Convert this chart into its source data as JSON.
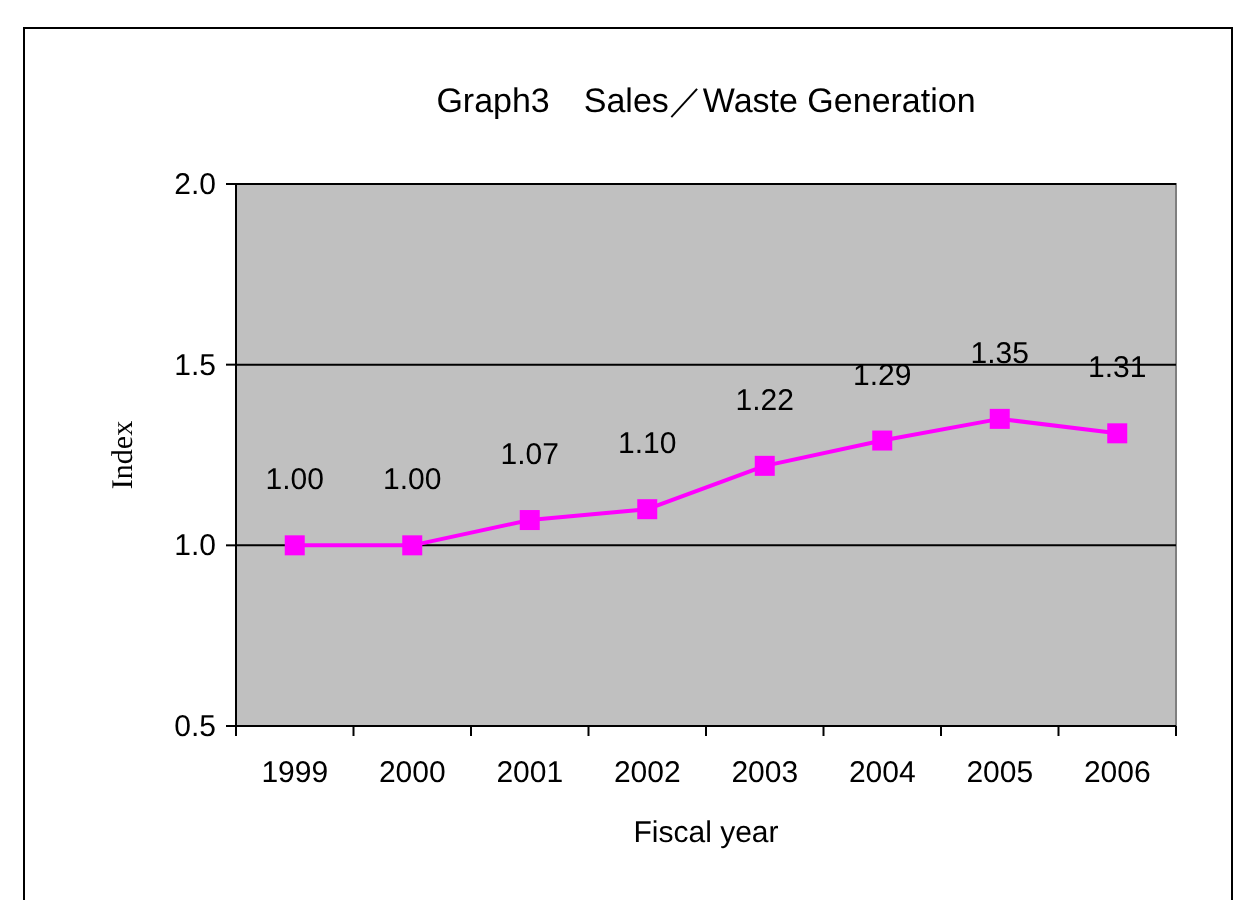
{
  "chart_data": {
    "type": "line",
    "title": "Graph3　Sales／Waste Generation",
    "xlabel": "Fiscal year",
    "ylabel": "Index",
    "categories": [
      "1999",
      "2000",
      "2001",
      "2002",
      "2003",
      "2004",
      "2005",
      "2006"
    ],
    "series": [
      {
        "color": "#ff00ff",
        "values": [
          1.0,
          1.0,
          1.07,
          1.1,
          1.22,
          1.29,
          1.35,
          1.31
        ],
        "value_labels": [
          "1.00",
          "1.00",
          "1.07",
          "1.10",
          "1.22",
          "1.29",
          "1.35",
          "1.31"
        ]
      }
    ],
    "ylim": [
      0.5,
      2.0
    ],
    "yticks": [
      {
        "value": 0.5,
        "label": "0.5"
      },
      {
        "value": 1,
        "label": "1.0"
      },
      {
        "value": 1.5,
        "label": "1.5"
      },
      {
        "value": 2,
        "label": "2.0"
      }
    ],
    "grid": "y",
    "marker": "square",
    "line_style": "solid"
  }
}
